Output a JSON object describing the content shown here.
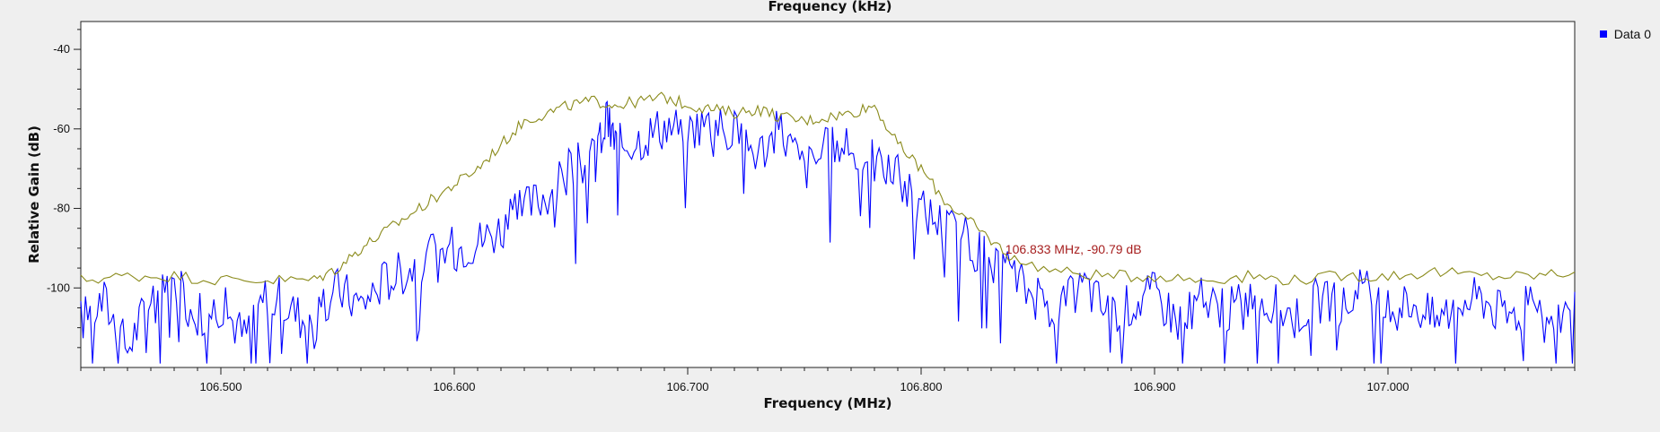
{
  "window": {
    "top_axis_label": "Frequency (kHz)"
  },
  "legend": {
    "items": [
      {
        "label": "Data 0",
        "color": "#0000ff"
      }
    ]
  },
  "marker": {
    "text": "106.833 MHz, -90.79 dB",
    "x_mhz": 106.833,
    "y_db": -90.79,
    "color": "#a61e1e"
  },
  "chart_data": {
    "type": "line",
    "title": "",
    "xlabel": "Frequency (MHz)",
    "ylabel": "Relative Gain (dB)",
    "xlim": [
      106.44,
      107.08
    ],
    "ylim": [
      -120,
      -33
    ],
    "x_ticks": [
      106.5,
      106.6,
      106.7,
      106.8,
      106.9,
      107.0
    ],
    "x_tick_labels": [
      "106.500",
      "106.600",
      "106.700",
      "106.800",
      "106.900",
      "107.000"
    ],
    "y_ticks": [
      -40,
      -60,
      -80,
      -100
    ],
    "y_tick_labels": [
      "-40",
      "-60",
      "-80",
      "-100"
    ],
    "grid": false,
    "series": [
      {
        "name": "Data 0",
        "color": "#0000ff",
        "x": [
          106.44,
          106.45,
          106.46,
          106.47,
          106.48,
          106.49,
          106.5,
          106.51,
          106.52,
          106.53,
          106.54,
          106.55,
          106.56,
          106.57,
          106.58,
          106.59,
          106.6,
          106.61,
          106.62,
          106.63,
          106.64,
          106.65,
          106.66,
          106.665,
          106.67,
          106.68,
          106.69,
          106.7,
          106.71,
          106.72,
          106.73,
          106.74,
          106.75,
          106.76,
          106.77,
          106.78,
          106.79,
          106.8,
          106.81,
          106.82,
          106.83,
          106.84,
          106.85,
          106.86,
          106.87,
          106.88,
          106.89,
          106.9,
          106.91,
          106.92,
          106.93,
          106.94,
          106.95,
          106.96,
          106.97,
          106.98,
          106.99,
          107.0,
          107.01,
          107.02,
          107.03,
          107.04,
          107.05,
          107.06,
          107.07,
          107.08
        ],
        "y": [
          -108,
          -103,
          -115,
          -102,
          -99,
          -107,
          -104,
          -112,
          -101,
          -105,
          -110,
          -100,
          -104,
          -98,
          -95,
          -92,
          -90,
          -88,
          -85,
          -80,
          -76,
          -70,
          -67,
          -58,
          -64,
          -62,
          -59,
          -60,
          -58,
          -61,
          -66,
          -60,
          -70,
          -65,
          -66,
          -68,
          -72,
          -80,
          -84,
          -88,
          -95,
          -97,
          -103,
          -105,
          -99,
          -106,
          -104,
          -101,
          -108,
          -103,
          -106,
          -102,
          -104,
          -107,
          -103,
          -105,
          -100,
          -106,
          -103,
          -108,
          -104,
          -102,
          -107,
          -105,
          -110,
          -101
        ]
      },
      {
        "name": "",
        "color": "#8a8a1a",
        "x": [
          106.44,
          106.46,
          106.48,
          106.5,
          106.52,
          106.54,
          106.55,
          106.56,
          106.57,
          106.58,
          106.59,
          106.6,
          106.61,
          106.62,
          106.63,
          106.64,
          106.65,
          106.66,
          106.67,
          106.68,
          106.69,
          106.7,
          106.71,
          106.72,
          106.73,
          106.74,
          106.75,
          106.76,
          106.77,
          106.78,
          106.79,
          106.8,
          106.81,
          106.82,
          106.83,
          106.84,
          106.86,
          106.88,
          106.9,
          106.92,
          106.94,
          106.96,
          106.98,
          107.0,
          107.02,
          107.04,
          107.06,
          107.08
        ],
        "y": [
          -98,
          -97,
          -97,
          -98,
          -98,
          -98,
          -95,
          -90,
          -86,
          -82,
          -78,
          -74,
          -70,
          -64,
          -58,
          -56,
          -54,
          -53,
          -54,
          -53,
          -52,
          -54,
          -55,
          -56,
          -55,
          -57,
          -58,
          -57,
          -56,
          -54,
          -64,
          -70,
          -78,
          -83,
          -88,
          -93,
          -96,
          -97,
          -97,
          -98,
          -97,
          -98,
          -97,
          -97,
          -96,
          -97,
          -97,
          -96
        ]
      }
    ]
  }
}
